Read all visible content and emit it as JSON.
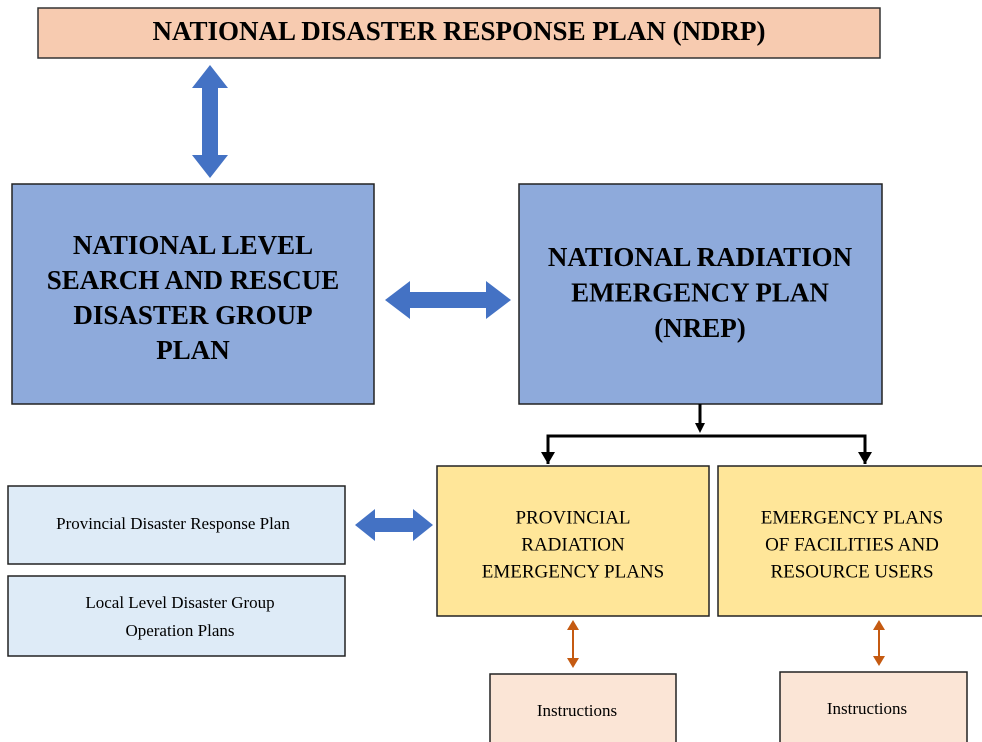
{
  "nodes": [
    {
      "lines": [
        "NATIONAL DISASTER RESPONSE PLAN (NDRP)"
      ]
    },
    {
      "lines": [
        "NATIONAL LEVEL",
        "SEARCH AND RESCUE",
        "DISASTER GROUP",
        "PLAN"
      ]
    },
    {
      "lines": [
        "NATIONAL RADIATION",
        "EMERGENCY PLAN",
        "(NREP)"
      ]
    },
    {
      "lines": [
        "PROVINCIAL",
        "RADIATION",
        "EMERGENCY PLANS"
      ]
    },
    {
      "lines": [
        "EMERGENCY PLANS",
        "OF FACILITIES AND",
        "RESOURCE USERS"
      ]
    },
    {
      "lines": [
        "Provincial Disaster Response Plan"
      ]
    },
    {
      "lines": [
        "Local Level Disaster Group",
        "Operation Plans"
      ]
    },
    {
      "lines": [
        "Instructions"
      ]
    },
    {
      "lines": [
        "Instructions"
      ]
    }
  ]
}
